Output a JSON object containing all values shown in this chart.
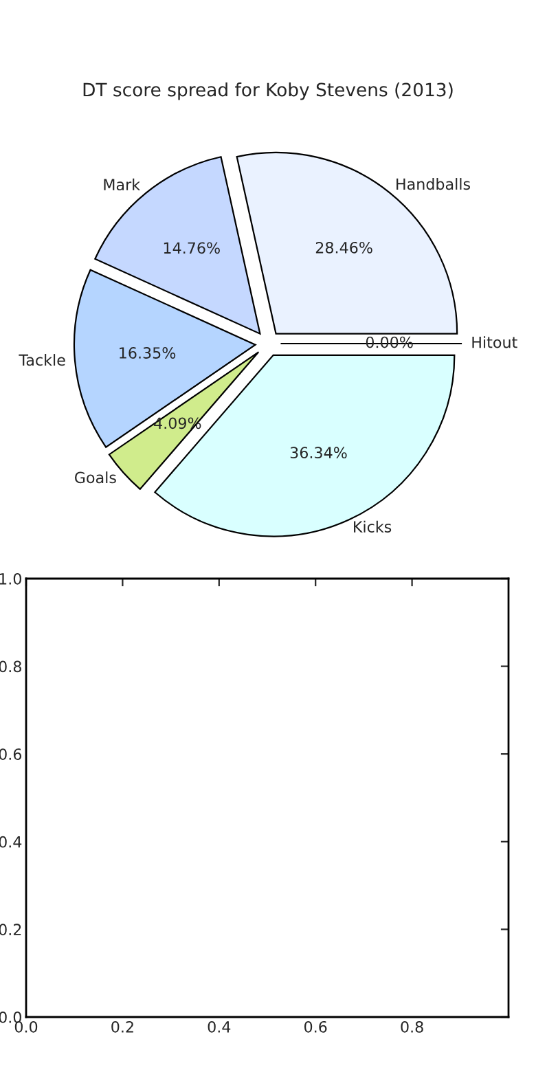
{
  "chart_data": [
    {
      "type": "pie",
      "title": "DT score spread for Koby Stevens (2013)",
      "categories": [
        "Handballs",
        "Mark",
        "Tackle",
        "Goals",
        "Kicks",
        "Hitout"
      ],
      "values": [
        28.46,
        14.76,
        16.35,
        4.09,
        36.34,
        0.0
      ],
      "value_labels": [
        "28.46%",
        "14.76%",
        "16.35%",
        "4.09%",
        "36.34%",
        "0.00%"
      ],
      "colors": [
        "#eaf2ff",
        "#c5d8ff",
        "#b5d5ff",
        "#d0ec8c",
        "#d9ffff",
        "#ffffff"
      ]
    },
    {
      "type": "line",
      "xlim": [
        0,
        1
      ],
      "ylim": [
        0,
        1
      ],
      "xticks": [
        {
          "value": 0,
          "label": "0.0"
        },
        0.2,
        0.4,
        0.6,
        0.8
      ],
      "yticks": [
        {
          "value": 0,
          "label": "0.0"
        },
        0.2,
        0.4,
        0.6,
        0.8,
        {
          "value": 1,
          "label": "1.0"
        }
      ]
    }
  ]
}
